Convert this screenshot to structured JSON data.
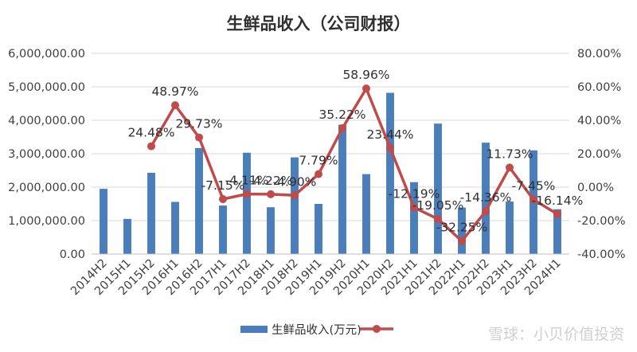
{
  "chart_data": {
    "type": "bar+line",
    "title": "生鲜品收入（公司财报）",
    "categories": [
      "2014H2",
      "2015H1",
      "2015H2",
      "2016H1",
      "2016H2",
      "2017H1",
      "2017H2",
      "2018H1",
      "2018H2",
      "2019H1",
      "2019H2",
      "2020H1",
      "2020H2",
      "2021H1",
      "2021H2",
      "2022H1",
      "2022H2",
      "2023H1",
      "2023H2",
      "2024H1"
    ],
    "bar_series": {
      "name": "生鲜品收入(万元)",
      "color": "#4a7ebb",
      "values": [
        1950000,
        1050000,
        2430000,
        1560000,
        3170000,
        1450000,
        3030000,
        1400000,
        2890000,
        1500000,
        3870000,
        2390000,
        4820000,
        2150000,
        3900000,
        1390000,
        3330000,
        1570000,
        3100000,
        1340000
      ]
    },
    "line_series": {
      "name": "",
      "color": "#bf4b4a",
      "values": [
        null,
        null,
        24.48,
        48.97,
        29.73,
        -7.15,
        -4.11,
        -4.22,
        -4.9,
        7.79,
        35.22,
        58.96,
        23.44,
        -12.19,
        -19.05,
        -32.25,
        -14.36,
        11.73,
        -7.45,
        -16.14
      ],
      "labels": [
        null,
        null,
        "24.48%",
        "48.97%",
        "29.73%",
        "-7.15%",
        "-4.11%",
        "-4.22%",
        "-4.90%",
        "7.79%",
        "35.22%",
        "58.96%",
        "23.44%",
        "-12.19%",
        "-19.05%",
        "-32.25%",
        "-14.36%",
        "11.73%",
        "-7.45%",
        "-16.14%"
      ]
    },
    "y_left": {
      "min": 0,
      "max": 6000000,
      "step": 1000000,
      "tick_labels": [
        "0.00",
        "1,000,000.00",
        "2,000,000.00",
        "3,000,000.00",
        "4,000,000.00",
        "5,000,000.00",
        "6,000,000.00"
      ]
    },
    "y_right": {
      "min": -40,
      "max": 80,
      "step": 20,
      "tick_labels": [
        "-40.00%",
        "-20.00%",
        "0.00%",
        "20.00%",
        "40.00%",
        "60.00%",
        "80.00%"
      ]
    },
    "grid": true,
    "legend_position": "bottom",
    "grid_color": "#d9d9d9"
  },
  "watermark": "雪球：小贝价值投资"
}
